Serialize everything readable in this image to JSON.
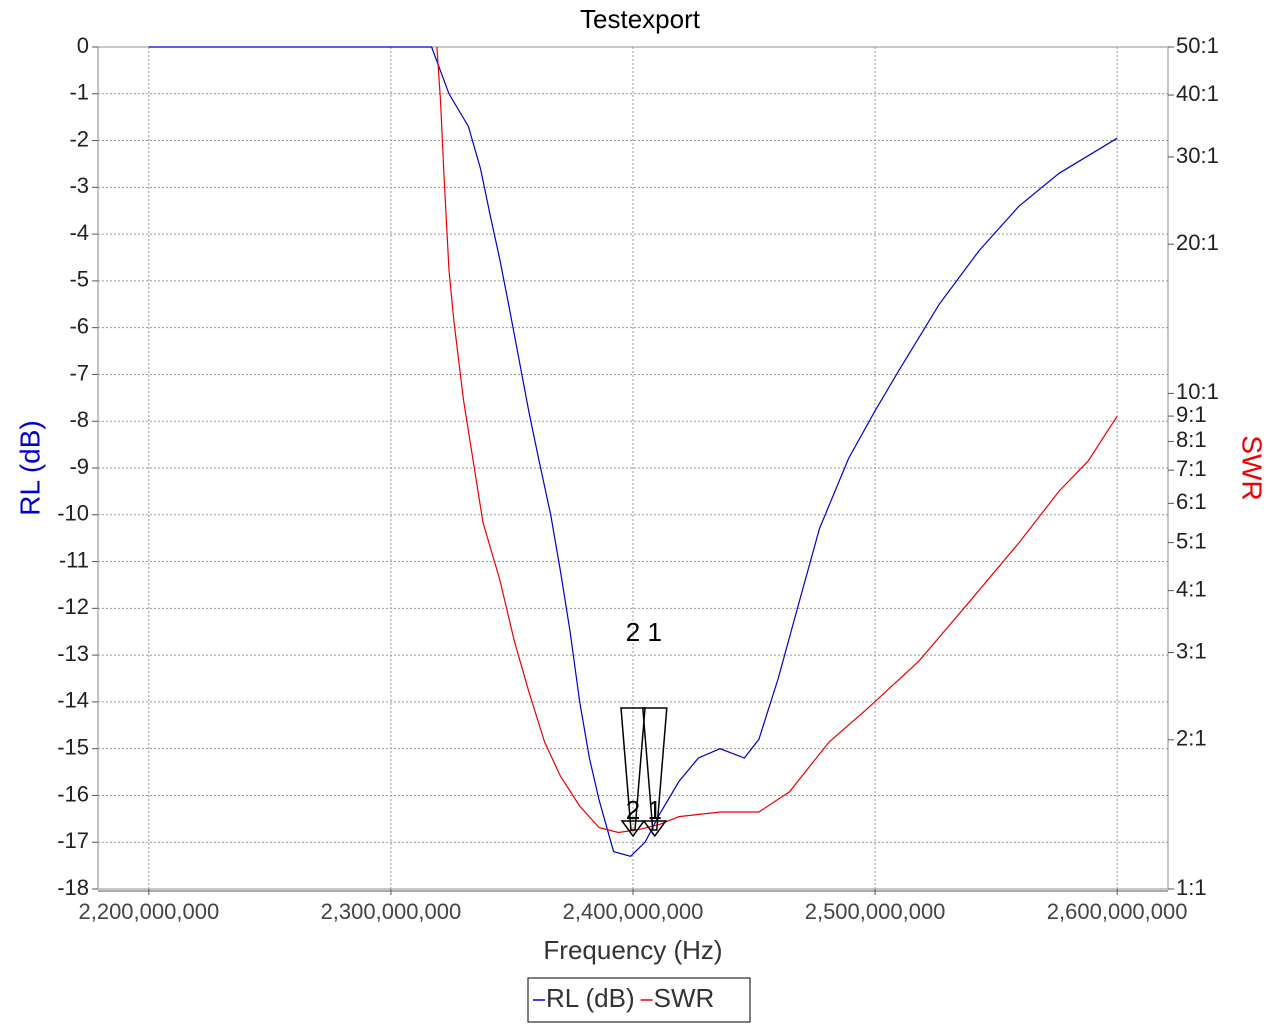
{
  "chart_data": {
    "type": "line",
    "title": "Testexport",
    "xlabel": "Frequency (Hz)",
    "ylabel": "RL (dB)",
    "y2label": "SWR",
    "xlim": [
      2179000000,
      2621000000
    ],
    "xticks": [
      {
        "value": 2200000000,
        "label": "2,200,000,000"
      },
      {
        "value": 2300000000,
        "label": "2,300,000,000"
      },
      {
        "value": 2400000000,
        "label": "2,400,000,000"
      },
      {
        "value": 2500000000,
        "label": "2,500,000,000"
      },
      {
        "value": 2600000000,
        "label": "2,600,000,000"
      }
    ],
    "ylim": [
      -18,
      0
    ],
    "yticks": [
      -18,
      -17,
      -16,
      -15,
      -14,
      -13,
      -12,
      -11,
      -10,
      -9,
      -8,
      -7,
      -6,
      -5,
      -4,
      -3,
      -2,
      -1,
      0
    ],
    "y2lim": [
      1,
      50
    ],
    "y2scale": "log",
    "y2ticks": [
      {
        "value": 1,
        "label": "1:1"
      },
      {
        "value": 2,
        "label": "2:1"
      },
      {
        "value": 3,
        "label": "3:1"
      },
      {
        "value": 4,
        "label": "4:1"
      },
      {
        "value": 5,
        "label": "5:1"
      },
      {
        "value": 6,
        "label": "6:1"
      },
      {
        "value": 7,
        "label": "7:1"
      },
      {
        "value": 8,
        "label": "8:1"
      },
      {
        "value": 9,
        "label": "9:1"
      },
      {
        "value": 10,
        "label": "10:1"
      },
      {
        "value": 20,
        "label": "20:1"
      },
      {
        "value": 30,
        "label": "30:1"
      },
      {
        "value": 40,
        "label": "40:1"
      },
      {
        "value": 50,
        "label": "50:1"
      }
    ],
    "grid": true,
    "series": [
      {
        "name": "RL (dB)",
        "color": "#0000cc",
        "x": [
          2200000000,
          2316800000,
          2324000000,
          2332000000,
          2337000000,
          2341000000,
          2345000000,
          2349000000,
          2353000000,
          2357000000,
          2361000000,
          2366000000,
          2370000000,
          2374000000,
          2378000000,
          2382000000,
          2386000000,
          2392000000,
          2399000000,
          2405000000,
          2411000000,
          2419000000,
          2427000000,
          2436000000,
          2446000000,
          2452000000,
          2460000000,
          2469000000,
          2477000000,
          2489000000,
          2499700000,
          2510000000,
          2526500000,
          2543000000,
          2559500000,
          2576000000,
          2600000000
        ],
        "values": [
          0,
          0,
          -1,
          -1.7,
          -2.6,
          -3.6,
          -4.55,
          -5.6,
          -6.7,
          -7.8,
          -8.8,
          -10,
          -11.2,
          -12.5,
          -14,
          -15.2,
          -16.1,
          -17.2,
          -17.3,
          -17,
          -16.4,
          -15.7,
          -15.2,
          -15,
          -15.2,
          -14.8,
          -13.5,
          -11.8,
          -10.3,
          -8.8,
          -7.8,
          -6.9,
          -5.5,
          -4.35,
          -3.4,
          -2.7,
          -1.95
        ]
      },
      {
        "name": "SWR",
        "color": "#ee0000",
        "axis": "y2",
        "x": [
          2319000000,
          2320500000,
          2322000000,
          2324000000,
          2326000000,
          2330000000,
          2334000000,
          2338000000,
          2345000000,
          2351000000,
          2357000000,
          2363500000,
          2370000000,
          2378000000,
          2386000000,
          2394000000,
          2403000000,
          2411000000,
          2419000000,
          2436000000,
          2452000000,
          2464600000,
          2481000000,
          2497600000,
          2518000000,
          2539000000,
          2559500000,
          2576000000,
          2588000000,
          2600000000
        ],
        "values": [
          50,
          39,
          27,
          17.7,
          14,
          9.7,
          7.3,
          5.5,
          4.2,
          3.16,
          2.5,
          1.98,
          1.69,
          1.47,
          1.33,
          1.3,
          1.32,
          1.35,
          1.4,
          1.43,
          1.43,
          1.57,
          1.98,
          2.33,
          2.88,
          3.8,
          5,
          6.35,
          7.3,
          9
        ]
      }
    ],
    "markers": [
      {
        "label": "1",
        "x": 2409000000
      },
      {
        "label": "2",
        "x": 2400000000
      }
    ]
  }
}
